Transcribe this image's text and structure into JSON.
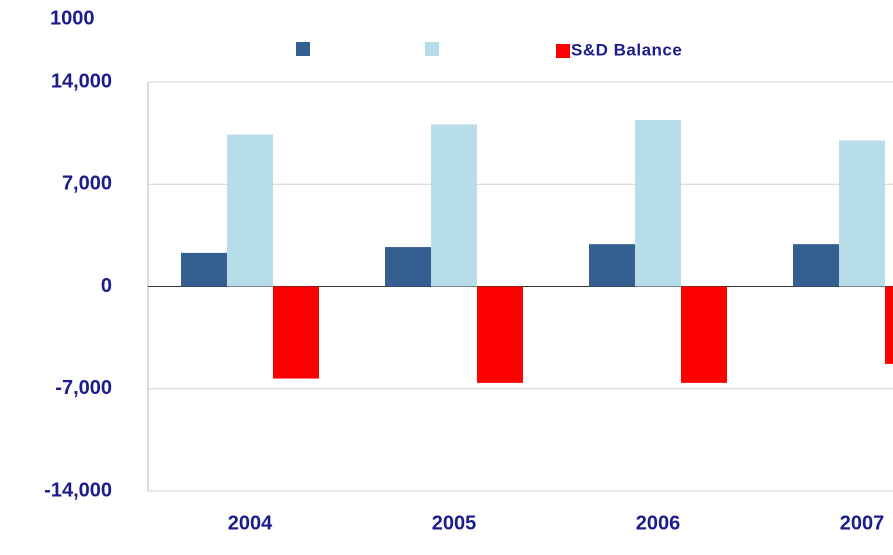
{
  "chart_data": {
    "type": "bar",
    "title": "1000",
    "categories": [
      "2004",
      "2005",
      "2006",
      "2007"
    ],
    "series": [
      {
        "name": null,
        "color": "#355f91",
        "values": [
          2300,
          2700,
          2900,
          2900
        ]
      },
      {
        "name": null,
        "color": "#b7dde8",
        "values": [
          10400,
          11100,
          11400,
          10000
        ]
      },
      {
        "name": "S&D Balance",
        "color": "#ff0000",
        "values": [
          -6300,
          -6600,
          -6600,
          -5300
        ]
      }
    ],
    "ylim": [
      -14000,
      14000
    ],
    "yticks": [
      {
        "value": -14000,
        "label": "-14,000"
      },
      {
        "value": -7000,
        "label": "-7,000"
      },
      0,
      {
        "value": 7000,
        "label": "7,000"
      },
      {
        "value": 14000,
        "label": "14,000"
      }
    ],
    "grid": true,
    "legend": "top"
  }
}
